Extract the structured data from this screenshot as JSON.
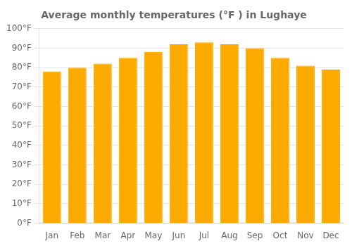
{
  "chart_data": {
    "type": "bar",
    "title": "Average monthly temperatures (°F ) in Lughaye",
    "categories": [
      "Jan",
      "Feb",
      "Mar",
      "Apr",
      "May",
      "Jun",
      "Jul",
      "Aug",
      "Sep",
      "Oct",
      "Nov",
      "Dec"
    ],
    "values": [
      78,
      80,
      82,
      85,
      88,
      92,
      93,
      92,
      90,
      85,
      81,
      79
    ],
    "color": "#FFAA00",
    "ylim": [
      0,
      100
    ],
    "yticks": [
      {
        "value": 0,
        "label": "0°F"
      },
      {
        "value": 10,
        "label": "10°F"
      },
      {
        "value": 20,
        "label": "20°F"
      },
      {
        "value": 30,
        "label": "30°F"
      },
      {
        "value": 40,
        "label": "40°F"
      },
      {
        "value": 50,
        "label": "50°F"
      },
      {
        "value": 60,
        "label": "60°F"
      },
      {
        "value": 70,
        "label": "70°F"
      },
      {
        "value": 80,
        "label": "80°F"
      },
      {
        "value": 90,
        "label": "90°F"
      },
      {
        "value": 100,
        "label": "100°F"
      }
    ],
    "grid": true
  }
}
